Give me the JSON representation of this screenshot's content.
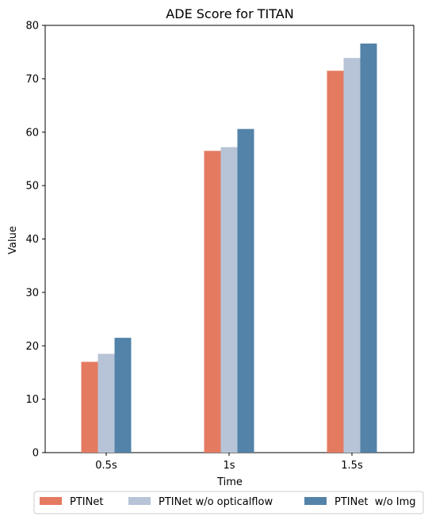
{
  "chart_data": {
    "type": "bar",
    "title": "ADE Score for TITAN",
    "xlabel": "Time",
    "ylabel": "Value",
    "categories": [
      "0.5s",
      "1s",
      "1.5s"
    ],
    "ylim": [
      0,
      80
    ],
    "yticks": [
      0,
      10,
      20,
      30,
      40,
      50,
      60,
      70,
      80
    ],
    "grid": false,
    "legend_position": "bottom",
    "series": [
      {
        "name": "PTINet",
        "color": "#E47A60",
        "values": [
          17.0,
          56.5,
          71.5
        ]
      },
      {
        "name": "PTINet w/o opticalflow",
        "color": "#B7C4D7",
        "values": [
          18.5,
          57.2,
          73.9
        ]
      },
      {
        "name": "PTINet  w/o Img",
        "color": "#5383A8",
        "values": [
          21.5,
          60.6,
          76.6
        ]
      }
    ]
  }
}
